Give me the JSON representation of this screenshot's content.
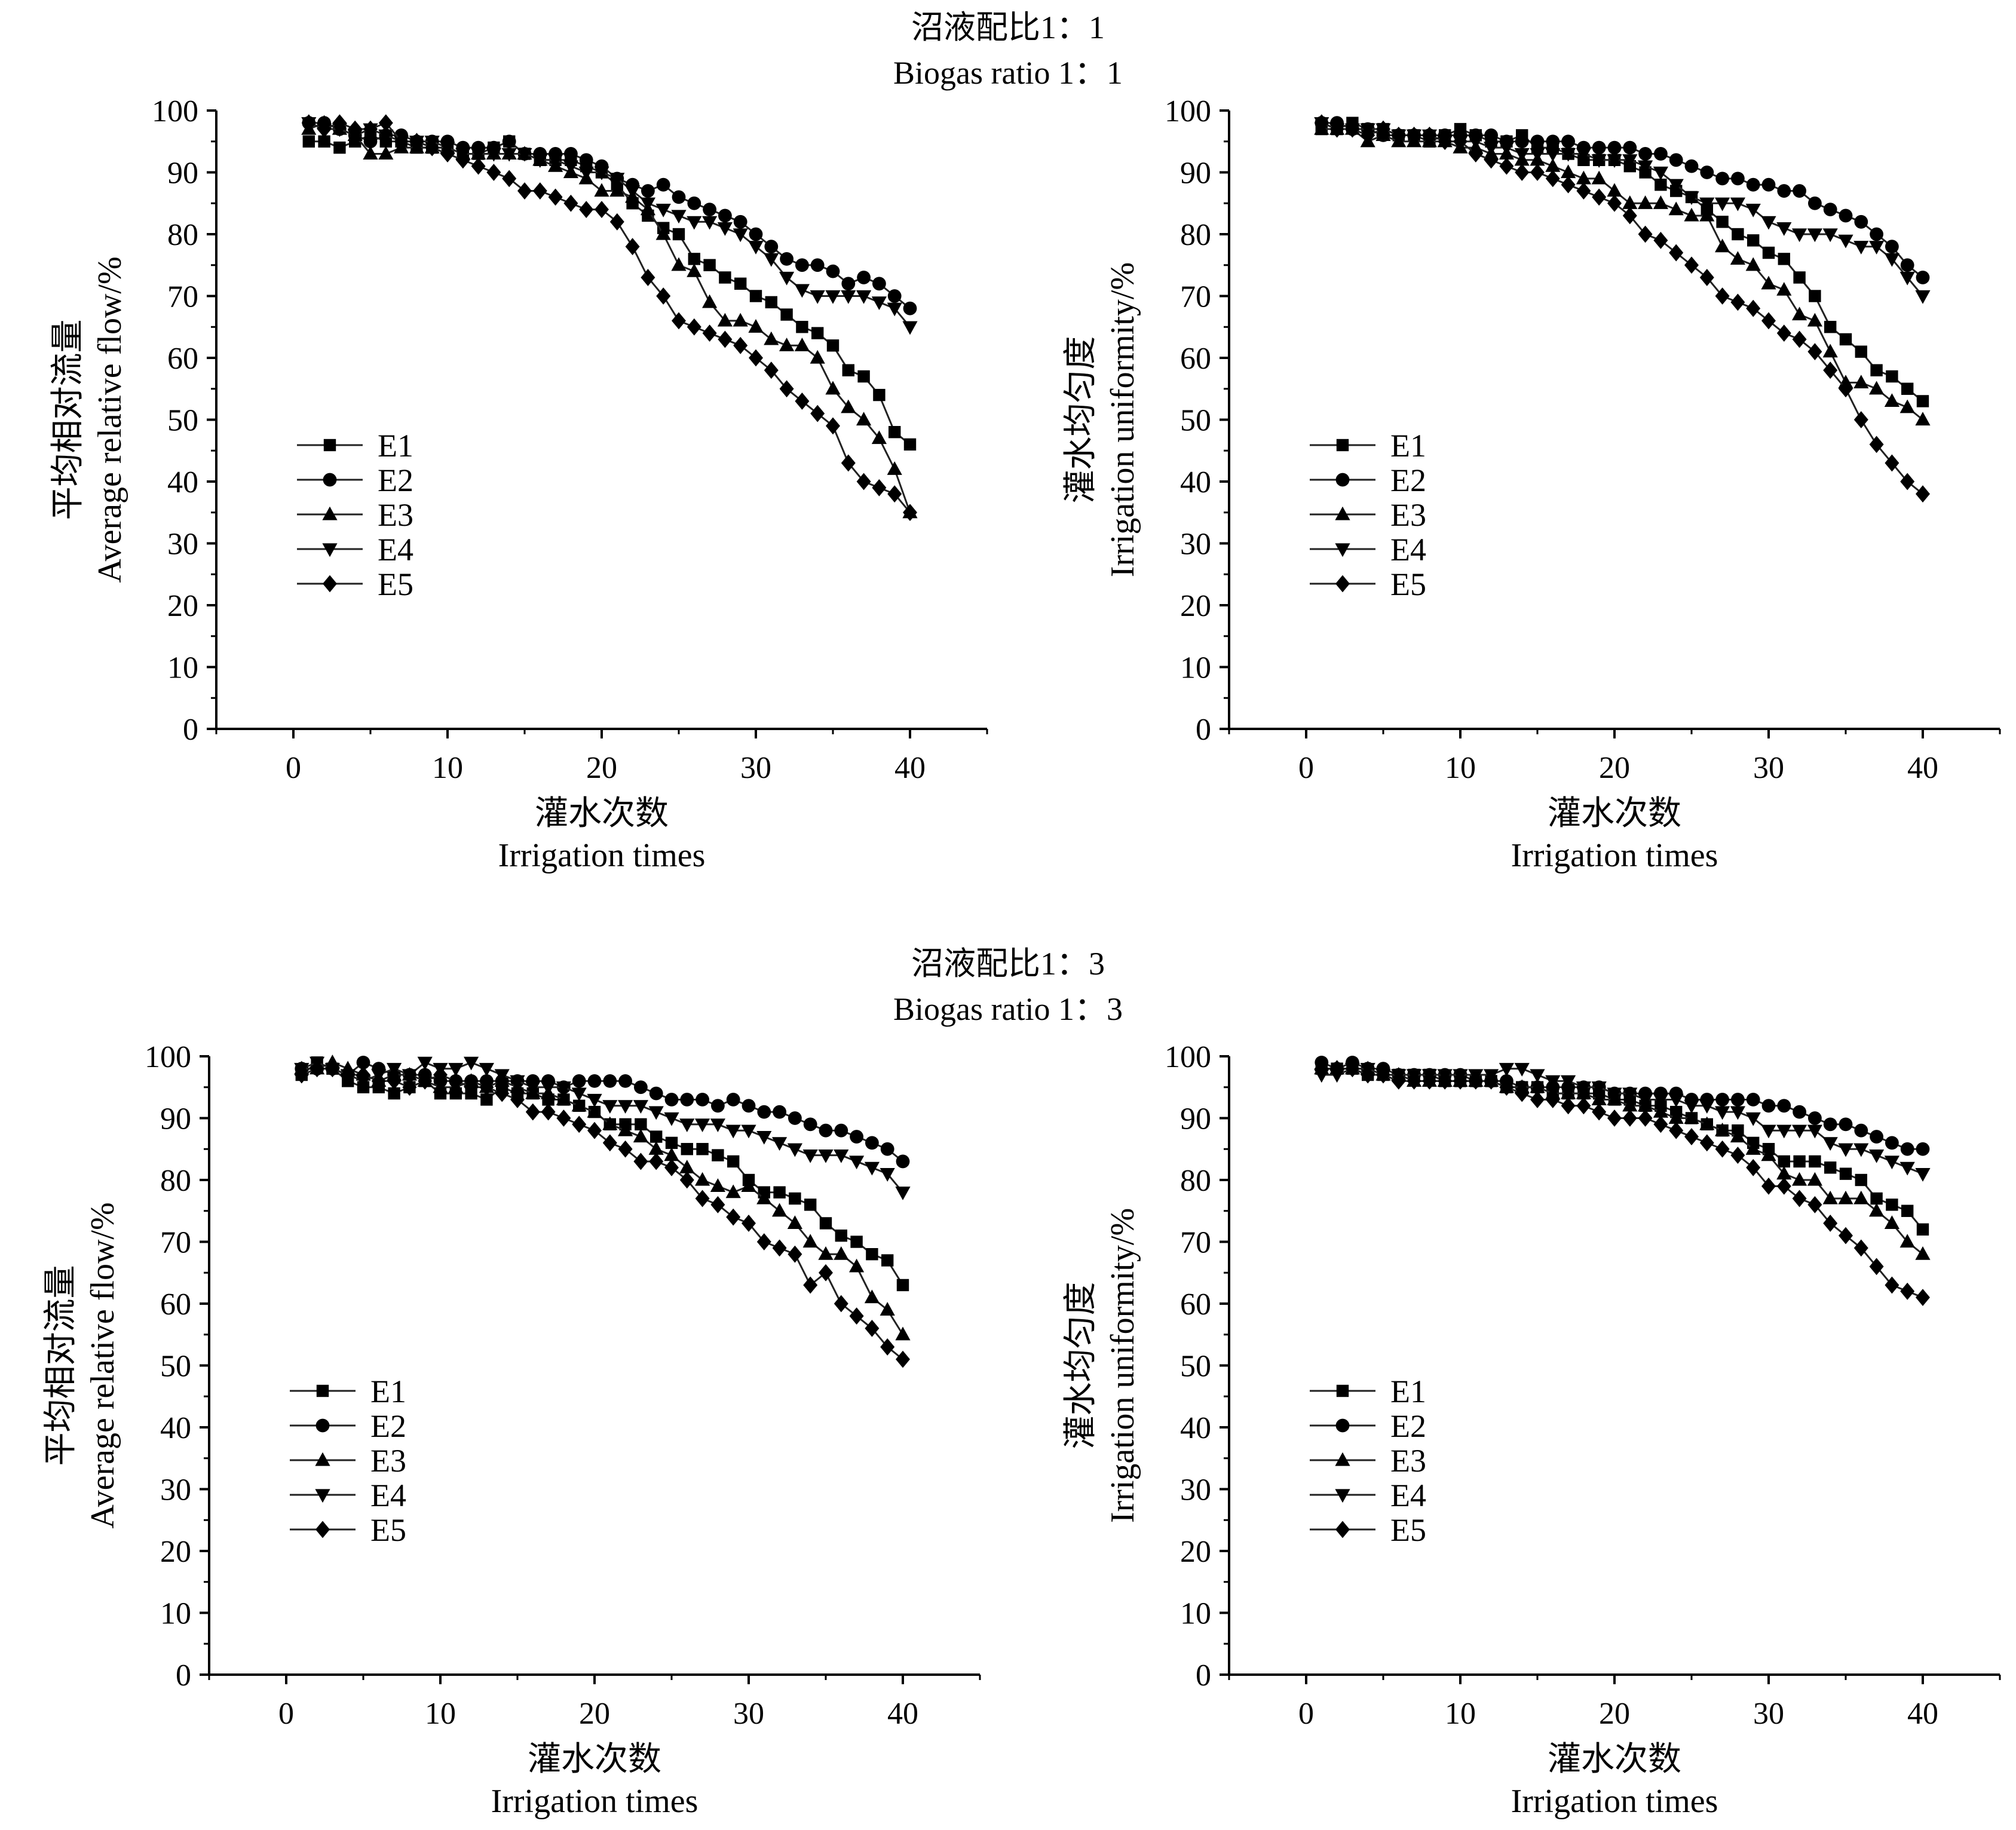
{
  "groups": [
    {
      "title_cn": "沼液配比1：1",
      "title_en": "Biogas ratio 1：1"
    },
    {
      "title_cn": "沼液配比1：3",
      "title_en": "Biogas ratio 1：3"
    }
  ],
  "legend": [
    "E1",
    "E2",
    "E3",
    "E4",
    "E5"
  ],
  "chart_data": [
    {
      "type": "line",
      "group": "Biogas ratio 1：1",
      "xlabel_cn": "灌水次数",
      "xlabel": "Irrigation times",
      "ylabel_cn": "平均相对流量",
      "ylabel": "Average relative flow/%",
      "xlim": [
        -5,
        45
      ],
      "ylim": [
        0,
        100
      ],
      "xticks": [
        0,
        10,
        20,
        30,
        40
      ],
      "yticks": [
        0,
        10,
        20,
        30,
        40,
        50,
        60,
        70,
        80,
        90,
        100
      ],
      "legend_position": "left-middle",
      "grid": false,
      "x": [
        1,
        2,
        3,
        4,
        5,
        6,
        7,
        8,
        9,
        10,
        11,
        12,
        13,
        14,
        15,
        16,
        17,
        18,
        19,
        20,
        21,
        22,
        23,
        24,
        25,
        26,
        27,
        28,
        29,
        30,
        31,
        32,
        33,
        34,
        35,
        36,
        37,
        38,
        39,
        40
      ],
      "series": [
        {
          "name": "E1",
          "marker": "square",
          "values": [
            95,
            95,
            94,
            95,
            96,
            95,
            95,
            94,
            94,
            94,
            93,
            93,
            94,
            95,
            93,
            92,
            92,
            92,
            91,
            90,
            88,
            85,
            83,
            81,
            80,
            76,
            75,
            73,
            72,
            70,
            69,
            67,
            65,
            64,
            62,
            58,
            57,
            54,
            48,
            46
          ]
        },
        {
          "name": "E2",
          "marker": "circle",
          "values": [
            98,
            98,
            97,
            96,
            95,
            96,
            96,
            95,
            95,
            95,
            94,
            94,
            94,
            95,
            93,
            93,
            93,
            93,
            92,
            91,
            89,
            88,
            87,
            88,
            86,
            85,
            84,
            83,
            82,
            80,
            78,
            76,
            75,
            75,
            74,
            72,
            73,
            72,
            70,
            68
          ]
        },
        {
          "name": "E3",
          "marker": "triangle-up",
          "values": [
            97,
            98,
            97,
            96,
            93,
            93,
            94,
            94,
            94,
            94,
            93,
            93,
            93,
            93,
            93,
            92,
            91,
            90,
            89,
            87,
            87,
            86,
            84,
            80,
            75,
            74,
            69,
            66,
            66,
            65,
            63,
            62,
            62,
            60,
            55,
            52,
            50,
            47,
            42,
            35
          ]
        },
        {
          "name": "E4",
          "marker": "triangle-down",
          "values": [
            98,
            97,
            97,
            96,
            97,
            96,
            95,
            95,
            95,
            94,
            93,
            93,
            93,
            93,
            93,
            92,
            92,
            91,
            90,
            90,
            89,
            87,
            85,
            84,
            83,
            82,
            82,
            81,
            80,
            78,
            76,
            73,
            71,
            70,
            70,
            70,
            70,
            69,
            68,
            65
          ]
        },
        {
          "name": "E5",
          "marker": "diamond",
          "values": [
            98,
            97,
            98,
            97,
            97,
            98,
            95,
            95,
            94,
            93,
            92,
            91,
            90,
            89,
            87,
            87,
            86,
            85,
            84,
            84,
            82,
            78,
            73,
            70,
            66,
            65,
            64,
            63,
            62,
            60,
            58,
            55,
            53,
            51,
            49,
            43,
            40,
            39,
            38,
            35
          ]
        }
      ]
    },
    {
      "type": "line",
      "group": "Biogas ratio 1：1",
      "xlabel_cn": "灌水次数",
      "xlabel": "Irrigation times",
      "ylabel_cn": "灌水均匀度",
      "ylabel": "Irrigation uniformity/%",
      "xlim": [
        -5,
        45
      ],
      "ylim": [
        0,
        100
      ],
      "xticks": [
        0,
        10,
        20,
        30,
        40
      ],
      "yticks": [
        0,
        10,
        20,
        30,
        40,
        50,
        60,
        70,
        80,
        90,
        100
      ],
      "legend_position": "left-middle",
      "grid": false,
      "x": [
        1,
        2,
        3,
        4,
        5,
        6,
        7,
        8,
        9,
        10,
        11,
        12,
        13,
        14,
        15,
        16,
        17,
        18,
        19,
        20,
        21,
        22,
        23,
        24,
        25,
        26,
        27,
        28,
        29,
        30,
        31,
        32,
        33,
        34,
        35,
        36,
        37,
        38,
        39,
        40
      ],
      "series": [
        {
          "name": "E1",
          "marker": "square",
          "values": [
            97,
            97,
            98,
            97,
            97,
            96,
            96,
            95,
            96,
            97,
            96,
            95,
            95,
            96,
            94,
            94,
            93,
            92,
            92,
            92,
            91,
            90,
            88,
            87,
            86,
            84,
            82,
            80,
            79,
            77,
            76,
            73,
            70,
            65,
            63,
            61,
            58,
            57,
            55,
            53
          ]
        },
        {
          "name": "E2",
          "marker": "circle",
          "values": [
            98,
            98,
            97,
            97,
            96,
            96,
            96,
            96,
            96,
            96,
            96,
            96,
            95,
            95,
            95,
            95,
            95,
            94,
            94,
            94,
            94,
            93,
            93,
            92,
            91,
            90,
            89,
            89,
            88,
            88,
            87,
            87,
            85,
            84,
            83,
            82,
            80,
            78,
            75,
            73
          ]
        },
        {
          "name": "E3",
          "marker": "triangle-up",
          "values": [
            97,
            97,
            97,
            95,
            96,
            95,
            95,
            95,
            95,
            94,
            94,
            93,
            93,
            92,
            92,
            91,
            90,
            89,
            89,
            87,
            85,
            85,
            85,
            84,
            83,
            83,
            78,
            76,
            75,
            72,
            71,
            67,
            66,
            61,
            56,
            56,
            55,
            53,
            52,
            50
          ]
        },
        {
          "name": "E4",
          "marker": "triangle-down",
          "values": [
            98,
            97,
            97,
            97,
            97,
            96,
            96,
            96,
            95,
            95,
            95,
            94,
            94,
            93,
            93,
            93,
            93,
            93,
            92,
            92,
            92,
            91,
            90,
            88,
            86,
            85,
            85,
            85,
            84,
            82,
            81,
            80,
            80,
            80,
            79,
            78,
            78,
            76,
            73,
            70
          ]
        },
        {
          "name": "E5",
          "marker": "diamond",
          "values": [
            98,
            97,
            97,
            96,
            97,
            96,
            96,
            96,
            95,
            95,
            93,
            92,
            91,
            90,
            90,
            89,
            88,
            87,
            86,
            85,
            83,
            80,
            79,
            77,
            75,
            73,
            70,
            69,
            68,
            66,
            64,
            63,
            61,
            58,
            55,
            50,
            46,
            43,
            40,
            38
          ]
        }
      ]
    },
    {
      "type": "line",
      "group": "Biogas ratio 1：3",
      "xlabel_cn": "灌水次数",
      "xlabel": "Irrigation times",
      "ylabel_cn": "平均相对流量",
      "ylabel": "Average relative flow/%",
      "xlim": [
        -5,
        45
      ],
      "ylim": [
        0,
        100
      ],
      "xticks": [
        0,
        10,
        20,
        30,
        40
      ],
      "yticks": [
        0,
        10,
        20,
        30,
        40,
        50,
        60,
        70,
        80,
        90,
        100
      ],
      "legend_position": "left-middle",
      "grid": false,
      "x": [
        1,
        2,
        3,
        4,
        5,
        6,
        7,
        8,
        9,
        10,
        11,
        12,
        13,
        14,
        15,
        16,
        17,
        18,
        19,
        20,
        21,
        22,
        23,
        24,
        25,
        26,
        27,
        28,
        29,
        30,
        31,
        32,
        33,
        34,
        35,
        36,
        37,
        38,
        39,
        40
      ],
      "series": [
        {
          "name": "E1",
          "marker": "square",
          "values": [
            97,
            99,
            98,
            96,
            95,
            95,
            94,
            95,
            96,
            94,
            94,
            94,
            93,
            95,
            94,
            94,
            93,
            93,
            92,
            91,
            89,
            89,
            89,
            87,
            86,
            85,
            85,
            84,
            83,
            80,
            78,
            78,
            77,
            76,
            73,
            71,
            70,
            68,
            67,
            63
          ]
        },
        {
          "name": "E2",
          "marker": "circle",
          "values": [
            98,
            98,
            98,
            97,
            99,
            98,
            97,
            97,
            97,
            96,
            96,
            96,
            96,
            96,
            96,
            96,
            96,
            95,
            96,
            96,
            96,
            96,
            95,
            94,
            93,
            93,
            93,
            92,
            93,
            92,
            91,
            91,
            90,
            89,
            88,
            88,
            87,
            86,
            85,
            83
          ]
        },
        {
          "name": "E3",
          "marker": "triangle-up",
          "values": [
            98,
            98,
            99,
            98,
            97,
            96,
            97,
            97,
            96,
            95,
            95,
            96,
            95,
            96,
            95,
            94,
            94,
            93,
            92,
            91,
            89,
            88,
            87,
            85,
            84,
            82,
            80,
            79,
            78,
            79,
            77,
            75,
            73,
            70,
            68,
            68,
            66,
            61,
            59,
            55
          ]
        },
        {
          "name": "E4",
          "marker": "triangle-down",
          "values": [
            98,
            99,
            98,
            97,
            96,
            97,
            98,
            97,
            99,
            98,
            98,
            99,
            98,
            97,
            96,
            95,
            95,
            95,
            94,
            93,
            92,
            92,
            92,
            91,
            90,
            89,
            89,
            89,
            88,
            88,
            87,
            86,
            85,
            84,
            84,
            84,
            83,
            82,
            81,
            78
          ]
        },
        {
          "name": "E5",
          "marker": "diamond",
          "values": [
            97,
            98,
            98,
            97,
            97,
            96,
            96,
            95,
            96,
            97,
            96,
            95,
            95,
            94,
            93,
            91,
            91,
            90,
            89,
            88,
            86,
            85,
            83,
            83,
            82,
            80,
            77,
            76,
            74,
            73,
            70,
            69,
            68,
            63,
            65,
            60,
            58,
            56,
            53,
            51
          ]
        }
      ]
    },
    {
      "type": "line",
      "group": "Biogas ratio 1：3",
      "xlabel_cn": "灌水次数",
      "xlabel": "Irrigation times",
      "ylabel_cn": "灌水均匀度",
      "ylabel": "Irrigation uniformity/%",
      "xlim": [
        -5,
        45
      ],
      "ylim": [
        0,
        100
      ],
      "xticks": [
        0,
        10,
        20,
        30,
        40
      ],
      "yticks": [
        0,
        10,
        20,
        30,
        40,
        50,
        60,
        70,
        80,
        90,
        100
      ],
      "legend_position": "left-middle",
      "grid": false,
      "x": [
        1,
        2,
        3,
        4,
        5,
        6,
        7,
        8,
        9,
        10,
        11,
        12,
        13,
        14,
        15,
        16,
        17,
        18,
        19,
        20,
        21,
        22,
        23,
        24,
        25,
        26,
        27,
        28,
        29,
        30,
        31,
        32,
        33,
        34,
        35,
        36,
        37,
        38,
        39,
        40
      ],
      "series": [
        {
          "name": "E1",
          "marker": "square",
          "values": [
            98,
            98,
            98,
            97,
            97,
            97,
            97,
            97,
            96,
            96,
            96,
            96,
            95,
            95,
            95,
            94,
            94,
            94,
            94,
            93,
            93,
            92,
            92,
            91,
            90,
            89,
            88,
            88,
            86,
            85,
            83,
            83,
            83,
            82,
            81,
            80,
            77,
            76,
            75,
            72
          ]
        },
        {
          "name": "E2",
          "marker": "circle",
          "values": [
            99,
            98,
            99,
            98,
            98,
            97,
            97,
            97,
            97,
            97,
            96,
            96,
            96,
            95,
            95,
            95,
            95,
            95,
            95,
            94,
            94,
            94,
            94,
            94,
            93,
            93,
            93,
            93,
            93,
            92,
            92,
            91,
            90,
            89,
            89,
            88,
            87,
            86,
            85,
            85
          ]
        },
        {
          "name": "E3",
          "marker": "triangle-up",
          "values": [
            98,
            98,
            98,
            98,
            97,
            97,
            96,
            96,
            96,
            96,
            96,
            96,
            95,
            95,
            95,
            94,
            94,
            94,
            93,
            93,
            92,
            92,
            91,
            90,
            90,
            89,
            88,
            87,
            85,
            84,
            81,
            80,
            80,
            77,
            77,
            77,
            75,
            73,
            70,
            68
          ]
        },
        {
          "name": "E4",
          "marker": "triangle-down",
          "values": [
            97,
            97,
            98,
            98,
            97,
            97,
            97,
            97,
            97,
            97,
            97,
            97,
            98,
            98,
            97,
            96,
            96,
            95,
            95,
            94,
            94,
            93,
            93,
            93,
            92,
            92,
            91,
            91,
            90,
            88,
            88,
            88,
            88,
            86,
            85,
            85,
            84,
            83,
            82,
            81
          ]
        },
        {
          "name": "E5",
          "marker": "diamond",
          "values": [
            98,
            98,
            98,
            97,
            97,
            96,
            96,
            96,
            96,
            96,
            96,
            96,
            95,
            94,
            93,
            93,
            92,
            92,
            91,
            90,
            90,
            90,
            89,
            88,
            87,
            86,
            85,
            84,
            82,
            79,
            79,
            77,
            76,
            73,
            71,
            69,
            66,
            63,
            62,
            61
          ]
        }
      ]
    }
  ]
}
